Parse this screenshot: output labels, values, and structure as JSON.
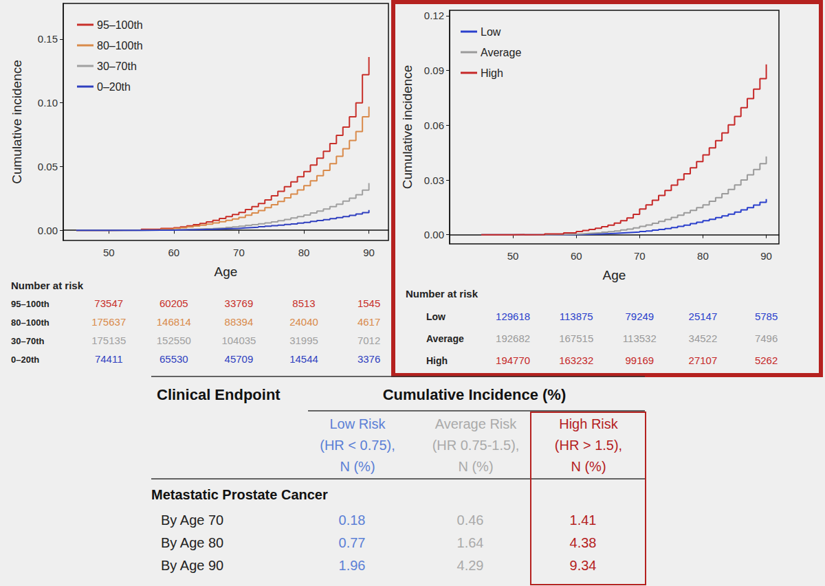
{
  "chart_data": [
    {
      "type": "step",
      "x_label": "Age",
      "y_label": "Cumulative incidence",
      "x": [
        45,
        50,
        55,
        58,
        60,
        61,
        62,
        63,
        64,
        65,
        66,
        67,
        68,
        69,
        70,
        71,
        72,
        73,
        74,
        75,
        76,
        77,
        78,
        79,
        80,
        81,
        82,
        83,
        84,
        85,
        86,
        87,
        88,
        89,
        90
      ],
      "xlim": [
        43,
        93
      ],
      "xticks": [
        50,
        60,
        70,
        80,
        90
      ],
      "ylim": [
        -0.008,
        0.178
      ],
      "yticks": [
        {
          "value": 0,
          "label": "0.00"
        },
        {
          "value": 0.05,
          "label": "0.05"
        },
        {
          "value": 0.1,
          "label": "0.10"
        },
        {
          "value": 0.15,
          "label": "0.15"
        }
      ],
      "grid": false,
      "legend": "upper left",
      "series": [
        {
          "name": "95–100th",
          "color": "#c8302a",
          "values": [
            0,
            0.0002,
            0.0008,
            0.0015,
            0.002,
            0.0027,
            0.0035,
            0.0044,
            0.0054,
            0.0066,
            0.0078,
            0.0092,
            0.0107,
            0.0123,
            0.014,
            0.0162,
            0.0185,
            0.021,
            0.0238,
            0.027,
            0.0305,
            0.0342,
            0.038,
            0.042,
            0.046,
            0.0512,
            0.0565,
            0.062,
            0.068,
            0.0745,
            0.081,
            0.089,
            0.1,
            0.122,
            0.136
          ]
        },
        {
          "name": "80–100th",
          "color": "#d98a4a",
          "values": [
            0,
            0.0001,
            0.0004,
            0.0008,
            0.0015,
            0.002,
            0.0026,
            0.0033,
            0.004,
            0.0048,
            0.0057,
            0.0067,
            0.0078,
            0.0089,
            0.01,
            0.0118,
            0.0136,
            0.0155,
            0.0177,
            0.02,
            0.0226,
            0.0254,
            0.0284,
            0.0316,
            0.035,
            0.0388,
            0.0428,
            0.047,
            0.0522,
            0.058,
            0.064,
            0.0705,
            0.0775,
            0.089,
            0.097
          ]
        },
        {
          "name": "30–70th",
          "color": "#a0a0a0",
          "values": [
            0,
            0,
            0.0001,
            0.0002,
            0.0004,
            0.0005,
            0.0007,
            0.0009,
            0.0011,
            0.0013,
            0.0016,
            0.0019,
            0.0023,
            0.0027,
            0.0032,
            0.0038,
            0.0044,
            0.0051,
            0.0058,
            0.0066,
            0.0075,
            0.0085,
            0.0096,
            0.0108,
            0.012,
            0.0135,
            0.015,
            0.0167,
            0.0185,
            0.0205,
            0.0228,
            0.0252,
            0.0278,
            0.0315,
            0.037
          ]
        },
        {
          "name": "0–20th",
          "color": "#2f3fbf",
          "values": [
            0,
            0,
            0.0001,
            0.0001,
            0.0002,
            0.0003,
            0.0004,
            0.0005,
            0.0006,
            0.0007,
            0.0009,
            0.0011,
            0.0013,
            0.0015,
            0.0018,
            0.0021,
            0.0024,
            0.0028,
            0.0032,
            0.0036,
            0.004,
            0.0045,
            0.005,
            0.0056,
            0.0062,
            0.0069,
            0.0076,
            0.0083,
            0.0091,
            0.0099,
            0.0108,
            0.0117,
            0.0127,
            0.0138,
            0.0158
          ]
        }
      ]
    },
    {
      "type": "step",
      "x_label": "Age",
      "y_label": "Cumulative incidence",
      "x": [
        45,
        50,
        55,
        58,
        60,
        61,
        62,
        63,
        64,
        65,
        66,
        67,
        68,
        69,
        70,
        71,
        72,
        73,
        74,
        75,
        76,
        77,
        78,
        79,
        80,
        81,
        82,
        83,
        84,
        85,
        86,
        87,
        88,
        89,
        90
      ],
      "xlim": [
        40,
        92
      ],
      "xticks": [
        50,
        60,
        70,
        80,
        90
      ],
      "ylim": [
        -0.005,
        0.123
      ],
      "yticks": [
        {
          "value": 0,
          "label": "0.00"
        },
        {
          "value": 0.03,
          "label": "0.03"
        },
        {
          "value": 0.06,
          "label": "0.06"
        },
        {
          "value": 0.09,
          "label": "0.09"
        },
        {
          "value": 0.12,
          "label": "0.12"
        }
      ],
      "grid": false,
      "legend": "upper left",
      "series": [
        {
          "name": "Low",
          "color": "#2a3fcc",
          "values": [
            0,
            0,
            0,
            0.0001,
            0.0002,
            0.0003,
            0.0004,
            0.0005,
            0.0006,
            0.0007,
            0.0009,
            0.0011,
            0.0013,
            0.0015,
            0.0018,
            0.0021,
            0.0025,
            0.0029,
            0.0034,
            0.0039,
            0.0046,
            0.0053,
            0.0061,
            0.0069,
            0.0077,
            0.0085,
            0.0094,
            0.0103,
            0.0113,
            0.0124,
            0.0136,
            0.0149,
            0.0163,
            0.0178,
            0.0196
          ]
        },
        {
          "name": "Average",
          "color": "#9a9a9a",
          "values": [
            0,
            0,
            0.0001,
            0.0003,
            0.0005,
            0.0007,
            0.0009,
            0.0011,
            0.0014,
            0.0017,
            0.0021,
            0.0026,
            0.0031,
            0.0038,
            0.0046,
            0.0054,
            0.0063,
            0.0073,
            0.0084,
            0.0095,
            0.0107,
            0.012,
            0.0134,
            0.0149,
            0.0164,
            0.0183,
            0.0203,
            0.0225,
            0.0248,
            0.0273,
            0.03,
            0.0328,
            0.0358,
            0.039,
            0.0429
          ]
        },
        {
          "name": "High",
          "color": "#c62828",
          "values": [
            0,
            0.0001,
            0.0005,
            0.001,
            0.0018,
            0.0023,
            0.0029,
            0.0036,
            0.0044,
            0.0053,
            0.0064,
            0.0077,
            0.0092,
            0.0112,
            0.0141,
            0.0164,
            0.0189,
            0.0215,
            0.0243,
            0.0272,
            0.0302,
            0.0334,
            0.0367,
            0.0401,
            0.0438,
            0.0476,
            0.0516,
            0.0558,
            0.0602,
            0.0648,
            0.0696,
            0.0746,
            0.0798,
            0.0855,
            0.0934
          ]
        }
      ]
    }
  ],
  "risk_tables": [
    {
      "title": "Number at risk",
      "rows": [
        {
          "label": "95–100th",
          "color": "#c8302a",
          "values": [
            73547,
            60205,
            33769,
            8513,
            1545
          ]
        },
        {
          "label": "80–100th",
          "color": "#d98a4a",
          "values": [
            175637,
            146814,
            88394,
            24040,
            4617
          ]
        },
        {
          "label": "30–70th",
          "color": "#a0a0a0",
          "values": [
            175135,
            152550,
            104035,
            31995,
            7012
          ]
        },
        {
          "label": "0–20th",
          "color": "#2f3fbf",
          "values": [
            74411,
            65530,
            45709,
            14544,
            3376
          ]
        }
      ]
    },
    {
      "title": "Number at risk",
      "rows": [
        {
          "label": "Low",
          "color": "#2a3fcc",
          "values": [
            129618,
            113875,
            79249,
            25147,
            5785
          ]
        },
        {
          "label": "Average",
          "color": "#9a9a9a",
          "values": [
            192682,
            167515,
            113532,
            34522,
            7496
          ]
        },
        {
          "label": "High",
          "color": "#c62828",
          "values": [
            194770,
            163232,
            99169,
            27107,
            5262
          ]
        }
      ]
    }
  ],
  "table": {
    "header": {
      "endpoint": "Clinical Endpoint",
      "title": "Cumulative Incidence (%)"
    },
    "columns": [
      {
        "lines": [
          "Low Risk",
          "(HR < 0.75),",
          "N (%)"
        ],
        "color": "#5b7fd6"
      },
      {
        "lines": [
          "Average Risk",
          "(HR 0.75-1.5),",
          "N (%)"
        ],
        "color": "#aaaaaa"
      },
      {
        "lines": [
          "High Risk",
          "(HR > 1.5),",
          "N (%)"
        ],
        "color": "#b5211f"
      }
    ],
    "section": "Metastatic Prostate Cancer",
    "rows": [
      {
        "label": "By Age 70",
        "values": [
          0.18,
          0.46,
          1.41
        ]
      },
      {
        "label": "By Age 80",
        "values": [
          0.77,
          1.64,
          4.38
        ]
      },
      {
        "label": "By Age 90",
        "values": [
          1.96,
          4.29,
          9.34
        ]
      }
    ]
  }
}
